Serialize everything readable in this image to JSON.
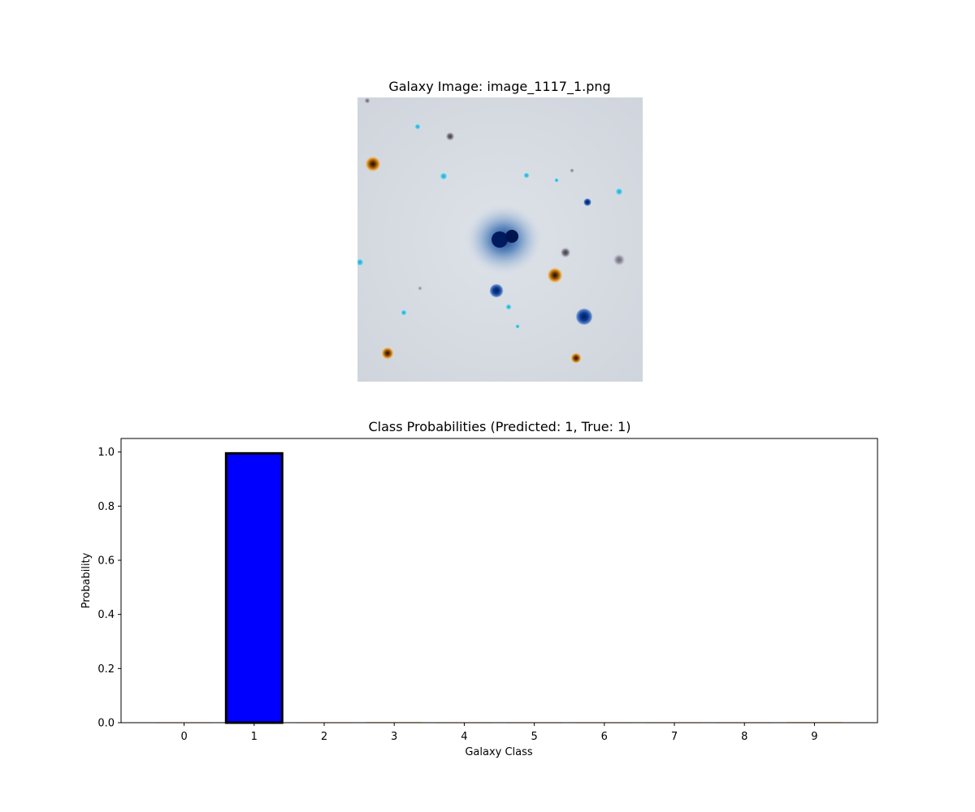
{
  "image_panel": {
    "title": "Galaxy Image: image_1117_1.png"
  },
  "chart_data": {
    "type": "bar",
    "title": "Class Probabilities (Predicted: 1, True: 1)",
    "xlabel": "Galaxy Class",
    "ylabel": "Probability",
    "categories": [
      "0",
      "1",
      "2",
      "3",
      "4",
      "5",
      "6",
      "7",
      "8",
      "9"
    ],
    "values": [
      0.0,
      0.995,
      0.0,
      0.002,
      0.0,
      0.0,
      0.0,
      0.0,
      0.0,
      0.002
    ],
    "ylim": [
      0,
      1.05
    ],
    "yticks": [
      "0.0",
      "0.2",
      "0.4",
      "0.6",
      "0.8",
      "1.0"
    ],
    "highlight_index": 1,
    "colors": {
      "highlight": "#0000ff",
      "default": "#ffa500",
      "edge": "#000000"
    },
    "grid": false,
    "legend": "none"
  }
}
